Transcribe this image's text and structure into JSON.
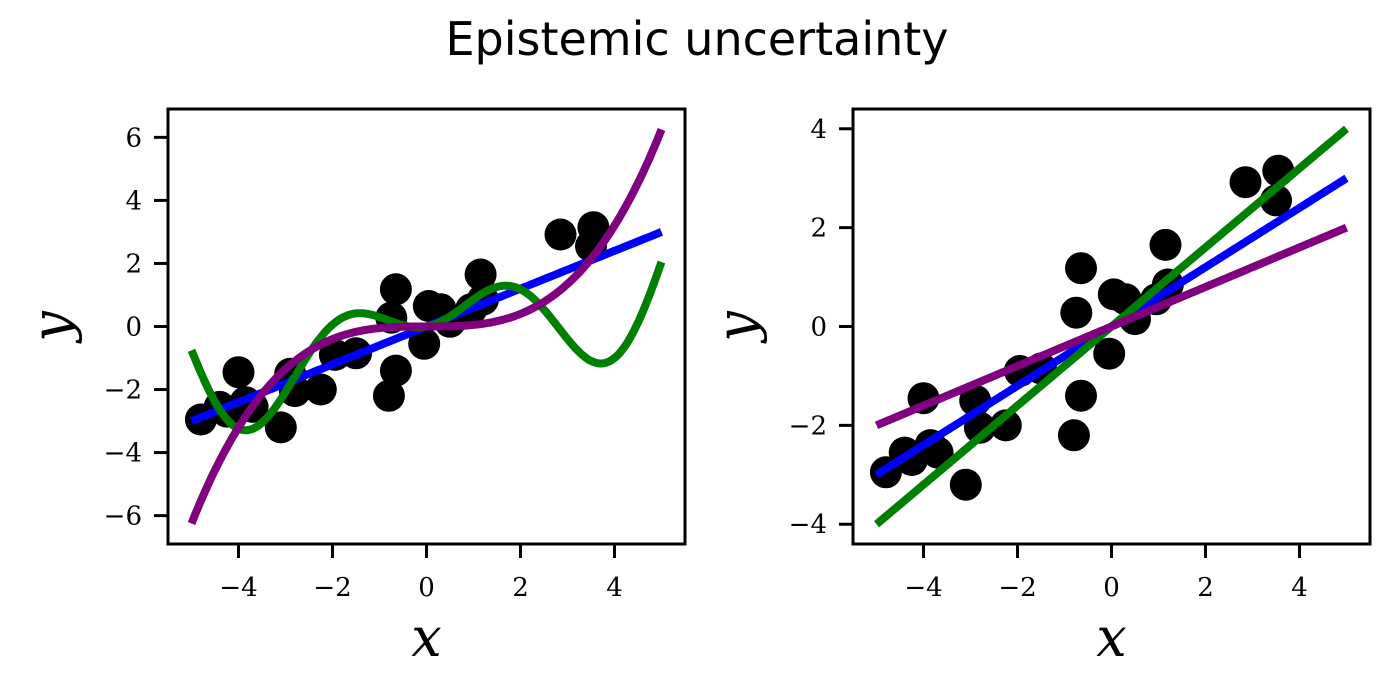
{
  "figure": {
    "title": "Epistemic uncertainty"
  },
  "chart_data": [
    {
      "type": "scatter",
      "xlabel": "x",
      "ylabel": "y",
      "xlim": [
        -5.5,
        5.5
      ],
      "ylim": [
        -6.9,
        6.9
      ],
      "xticks": [
        -4,
        -2,
        0,
        2,
        4
      ],
      "yticks": [
        -6,
        -4,
        -2,
        0,
        2,
        4,
        6
      ],
      "xtick_labels": [
        "−4",
        "−2",
        "0",
        "2",
        "4"
      ],
      "ytick_labels": [
        "−6",
        "−4",
        "−2",
        "0",
        "2",
        "4",
        "6"
      ],
      "grid": false,
      "points": {
        "color": "#000000",
        "x": [
          -4.8,
          -4.4,
          -4.25,
          -4.0,
          -3.85,
          -3.7,
          -3.1,
          -2.9,
          -2.8,
          -2.25,
          -1.95,
          -1.5,
          -0.8,
          -0.75,
          -0.65,
          -0.65,
          -0.05,
          0.05,
          0.3,
          0.5,
          0.95,
          1.15,
          1.2,
          2.85,
          3.5,
          3.55
        ],
        "y": [
          -2.95,
          -2.55,
          -2.7,
          -1.45,
          -2.4,
          -2.55,
          -3.2,
          -1.5,
          -2.05,
          -2.0,
          -0.9,
          -0.85,
          -2.2,
          0.28,
          1.18,
          -1.4,
          -0.55,
          0.65,
          0.55,
          0.15,
          0.55,
          1.65,
          0.85,
          2.92,
          2.55,
          3.15
        ]
      },
      "series": [
        {
          "color": "#0000ff",
          "kind": "linear",
          "coef": [
            0.0,
            0.6
          ]
        },
        {
          "color": "#008000",
          "kind": "poly_sin",
          "coef": [
            0.28,
            0.6,
            1.3
          ]
        },
        {
          "color": "#800080",
          "kind": "cubic",
          "coef": [
            0.05
          ]
        }
      ]
    },
    {
      "type": "scatter",
      "xlabel": "x",
      "ylabel": "y",
      "xlim": [
        -5.5,
        5.5
      ],
      "ylim": [
        -4.4,
        4.4
      ],
      "xticks": [
        -4,
        -2,
        0,
        2,
        4
      ],
      "yticks": [
        -4,
        -2,
        0,
        2,
        4
      ],
      "xtick_labels": [
        "−4",
        "−2",
        "0",
        "2",
        "4"
      ],
      "ytick_labels": [
        "−4",
        "−2",
        "0",
        "2",
        "4"
      ],
      "grid": false,
      "points": {
        "color": "#000000",
        "x": [
          -4.8,
          -4.4,
          -4.25,
          -4.0,
          -3.85,
          -3.7,
          -3.1,
          -2.9,
          -2.8,
          -2.25,
          -1.95,
          -1.5,
          -0.8,
          -0.75,
          -0.65,
          -0.65,
          -0.05,
          0.05,
          0.3,
          0.5,
          0.95,
          1.15,
          1.2,
          2.85,
          3.5,
          3.55
        ],
        "y": [
          -2.95,
          -2.55,
          -2.7,
          -1.45,
          -2.4,
          -2.55,
          -3.2,
          -1.5,
          -2.05,
          -2.0,
          -0.9,
          -0.85,
          -2.2,
          0.28,
          1.18,
          -1.4,
          -0.55,
          0.65,
          0.55,
          0.15,
          0.55,
          1.65,
          0.85,
          2.92,
          2.55,
          3.15
        ]
      },
      "series": [
        {
          "color": "#0000ff",
          "kind": "linear",
          "coef": [
            0.0,
            0.6
          ]
        },
        {
          "color": "#008000",
          "kind": "linear",
          "coef": [
            0.0,
            0.8
          ]
        },
        {
          "color": "#800080",
          "kind": "linear",
          "coef": [
            0.0,
            0.4
          ]
        }
      ]
    }
  ]
}
